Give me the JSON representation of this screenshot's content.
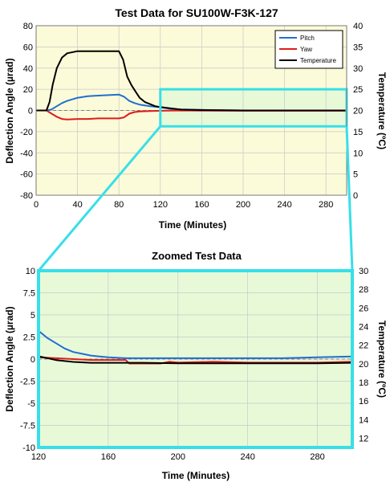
{
  "colors": {
    "pitch": "#1f6fd1",
    "yaw": "#e01b1b",
    "temperature": "#000000",
    "highlight": "#37dfe8",
    "top_bg": "#fbfbd9",
    "green_bg": "#e8f9d8",
    "grid": "#c8c8c8"
  },
  "chart_data": [
    {
      "type": "line",
      "title": "Test Data for SU100W-F3K-127",
      "xlabel": "Time (Minutes)",
      "ylabel": "Deflection Angle (µrad)",
      "y2label": "Temperature (ºC)",
      "xlim": [
        0,
        300
      ],
      "ylim": [
        -80,
        80
      ],
      "y2lim": [
        0,
        40
      ],
      "xticks": [
        0,
        40,
        80,
        120,
        160,
        200,
        240,
        280
      ],
      "yticks": [
        -80,
        -60,
        -40,
        -20,
        0,
        20,
        40,
        60,
        80
      ],
      "y2ticks": [
        0,
        5,
        10,
        15,
        20,
        25,
        30,
        35,
        40
      ],
      "grid": true,
      "legend_position": "top-right",
      "highlight_region": {
        "x": [
          120,
          300
        ],
        "y": [
          -15,
          20
        ]
      },
      "series": [
        {
          "name": "Pitch",
          "axis": "left",
          "x": [
            0,
            10,
            15,
            20,
            25,
            30,
            40,
            50,
            60,
            70,
            80,
            85,
            90,
            95,
            100,
            110,
            120,
            130,
            140,
            160,
            200,
            240,
            280,
            300
          ],
          "y": [
            0,
            0,
            1,
            4,
            7,
            9,
            12,
            13.5,
            14,
            14.5,
            15,
            13,
            9,
            7,
            5.5,
            4,
            3,
            1.5,
            1,
            0.5,
            0,
            0,
            0,
            0
          ]
        },
        {
          "name": "Yaw",
          "axis": "left",
          "x": [
            0,
            10,
            15,
            20,
            25,
            30,
            40,
            50,
            60,
            70,
            80,
            85,
            90,
            95,
            100,
            110,
            120,
            140,
            160,
            200,
            240,
            280,
            300
          ],
          "y": [
            0,
            0,
            -3,
            -6,
            -8,
            -8.5,
            -8,
            -8,
            -7.5,
            -7.5,
            -7.5,
            -6.5,
            -3,
            -1.5,
            -1,
            -0.5,
            -0.3,
            0,
            -0.2,
            -0.3,
            -0.3,
            -0.3,
            -0.3
          ]
        },
        {
          "name": "Temperature",
          "axis": "right",
          "x": [
            0,
            10,
            13,
            16,
            20,
            25,
            30,
            40,
            50,
            60,
            70,
            80,
            84,
            88,
            92,
            96,
            100,
            105,
            110,
            115,
            120,
            130,
            140,
            160,
            200,
            240,
            280,
            300
          ],
          "y": [
            20,
            20,
            22,
            26,
            30,
            32.5,
            33.5,
            34,
            34,
            34,
            34,
            34,
            32,
            28,
            26,
            24.5,
            23,
            22,
            21.5,
            21,
            20.8,
            20.5,
            20.2,
            20.1,
            20,
            20,
            20,
            20
          ]
        }
      ]
    },
    {
      "type": "line",
      "title": "Zoomed Test Data",
      "xlabel": "Time (Minutes)",
      "ylabel": "Deflection Angle (µrad)",
      "y2label": "Temperature (ºC)",
      "xlim": [
        120,
        300
      ],
      "ylim": [
        -10,
        10
      ],
      "y2lim": [
        11,
        30
      ],
      "xticks": [
        120,
        160,
        200,
        240,
        280
      ],
      "yticks": [
        -10,
        -7.5,
        -5,
        -2.5,
        0,
        2.5,
        5,
        7.5,
        10
      ],
      "y2ticks": [
        12,
        14,
        16,
        18,
        20,
        22,
        24,
        26,
        28,
        30
      ],
      "grid": true,
      "series": [
        {
          "name": "Pitch",
          "axis": "left",
          "x": [
            120,
            125,
            130,
            135,
            140,
            145,
            150,
            155,
            160,
            170,
            180,
            200,
            220,
            240,
            260,
            280,
            300
          ],
          "y": [
            3.2,
            2.4,
            1.8,
            1.2,
            0.8,
            0.6,
            0.4,
            0.3,
            0.2,
            0.1,
            0.1,
            0.1,
            0.1,
            0.1,
            0.1,
            0.2,
            0.3
          ]
        },
        {
          "name": "Yaw",
          "axis": "left",
          "x": [
            120,
            130,
            140,
            150,
            160,
            170,
            172,
            180,
            190,
            195,
            200,
            220,
            240,
            260,
            280,
            300
          ],
          "y": [
            0.2,
            0.1,
            0,
            -0.1,
            -0.1,
            -0.1,
            -0.5,
            -0.5,
            -0.5,
            -0.3,
            -0.4,
            -0.3,
            -0.4,
            -0.4,
            -0.4,
            -0.3
          ]
        },
        {
          "name": "Temperature",
          "axis": "right",
          "x": [
            120,
            125,
            130,
            140,
            150,
            160,
            180,
            200,
            220,
            240,
            260,
            280,
            300
          ],
          "y": [
            20.8,
            20.6,
            20.4,
            20.2,
            20.1,
            20.1,
            20.1,
            20.05,
            20.05,
            20.05,
            20.05,
            20.05,
            20.1
          ]
        }
      ]
    }
  ]
}
